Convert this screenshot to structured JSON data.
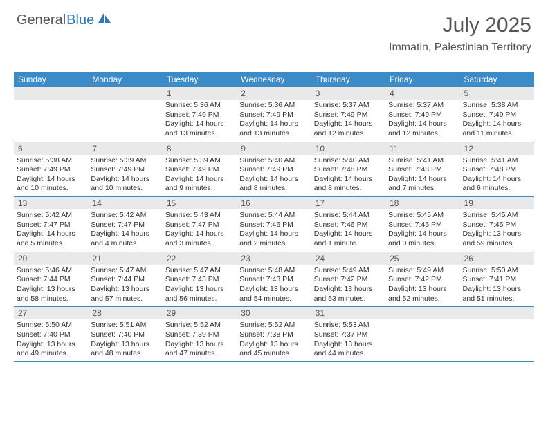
{
  "logo": {
    "text_general": "General",
    "text_blue": "Blue",
    "accent_color": "#2c77b8"
  },
  "header": {
    "month_title": "July 2025",
    "location": "Immatin, Palestinian Territory"
  },
  "colors": {
    "header_bg": "#3b8bc8",
    "day_num_bg": "#e9e9e9",
    "text_main": "#333333",
    "text_muted": "#555555",
    "row_border": "#3b8bc8"
  },
  "day_names": [
    "Sunday",
    "Monday",
    "Tuesday",
    "Wednesday",
    "Thursday",
    "Friday",
    "Saturday"
  ],
  "weeks": [
    [
      null,
      null,
      {
        "num": "1",
        "sunrise": "Sunrise: 5:36 AM",
        "sunset": "Sunset: 7:49 PM",
        "daylight": "Daylight: 14 hours and 13 minutes."
      },
      {
        "num": "2",
        "sunrise": "Sunrise: 5:36 AM",
        "sunset": "Sunset: 7:49 PM",
        "daylight": "Daylight: 14 hours and 13 minutes."
      },
      {
        "num": "3",
        "sunrise": "Sunrise: 5:37 AM",
        "sunset": "Sunset: 7:49 PM",
        "daylight": "Daylight: 14 hours and 12 minutes."
      },
      {
        "num": "4",
        "sunrise": "Sunrise: 5:37 AM",
        "sunset": "Sunset: 7:49 PM",
        "daylight": "Daylight: 14 hours and 12 minutes."
      },
      {
        "num": "5",
        "sunrise": "Sunrise: 5:38 AM",
        "sunset": "Sunset: 7:49 PM",
        "daylight": "Daylight: 14 hours and 11 minutes."
      }
    ],
    [
      {
        "num": "6",
        "sunrise": "Sunrise: 5:38 AM",
        "sunset": "Sunset: 7:49 PM",
        "daylight": "Daylight: 14 hours and 10 minutes."
      },
      {
        "num": "7",
        "sunrise": "Sunrise: 5:39 AM",
        "sunset": "Sunset: 7:49 PM",
        "daylight": "Daylight: 14 hours and 10 minutes."
      },
      {
        "num": "8",
        "sunrise": "Sunrise: 5:39 AM",
        "sunset": "Sunset: 7:49 PM",
        "daylight": "Daylight: 14 hours and 9 minutes."
      },
      {
        "num": "9",
        "sunrise": "Sunrise: 5:40 AM",
        "sunset": "Sunset: 7:49 PM",
        "daylight": "Daylight: 14 hours and 8 minutes."
      },
      {
        "num": "10",
        "sunrise": "Sunrise: 5:40 AM",
        "sunset": "Sunset: 7:48 PM",
        "daylight": "Daylight: 14 hours and 8 minutes."
      },
      {
        "num": "11",
        "sunrise": "Sunrise: 5:41 AM",
        "sunset": "Sunset: 7:48 PM",
        "daylight": "Daylight: 14 hours and 7 minutes."
      },
      {
        "num": "12",
        "sunrise": "Sunrise: 5:41 AM",
        "sunset": "Sunset: 7:48 PM",
        "daylight": "Daylight: 14 hours and 6 minutes."
      }
    ],
    [
      {
        "num": "13",
        "sunrise": "Sunrise: 5:42 AM",
        "sunset": "Sunset: 7:47 PM",
        "daylight": "Daylight: 14 hours and 5 minutes."
      },
      {
        "num": "14",
        "sunrise": "Sunrise: 5:42 AM",
        "sunset": "Sunset: 7:47 PM",
        "daylight": "Daylight: 14 hours and 4 minutes."
      },
      {
        "num": "15",
        "sunrise": "Sunrise: 5:43 AM",
        "sunset": "Sunset: 7:47 PM",
        "daylight": "Daylight: 14 hours and 3 minutes."
      },
      {
        "num": "16",
        "sunrise": "Sunrise: 5:44 AM",
        "sunset": "Sunset: 7:46 PM",
        "daylight": "Daylight: 14 hours and 2 minutes."
      },
      {
        "num": "17",
        "sunrise": "Sunrise: 5:44 AM",
        "sunset": "Sunset: 7:46 PM",
        "daylight": "Daylight: 14 hours and 1 minute."
      },
      {
        "num": "18",
        "sunrise": "Sunrise: 5:45 AM",
        "sunset": "Sunset: 7:45 PM",
        "daylight": "Daylight: 14 hours and 0 minutes."
      },
      {
        "num": "19",
        "sunrise": "Sunrise: 5:45 AM",
        "sunset": "Sunset: 7:45 PM",
        "daylight": "Daylight: 13 hours and 59 minutes."
      }
    ],
    [
      {
        "num": "20",
        "sunrise": "Sunrise: 5:46 AM",
        "sunset": "Sunset: 7:44 PM",
        "daylight": "Daylight: 13 hours and 58 minutes."
      },
      {
        "num": "21",
        "sunrise": "Sunrise: 5:47 AM",
        "sunset": "Sunset: 7:44 PM",
        "daylight": "Daylight: 13 hours and 57 minutes."
      },
      {
        "num": "22",
        "sunrise": "Sunrise: 5:47 AM",
        "sunset": "Sunset: 7:43 PM",
        "daylight": "Daylight: 13 hours and 56 minutes."
      },
      {
        "num": "23",
        "sunrise": "Sunrise: 5:48 AM",
        "sunset": "Sunset: 7:43 PM",
        "daylight": "Daylight: 13 hours and 54 minutes."
      },
      {
        "num": "24",
        "sunrise": "Sunrise: 5:49 AM",
        "sunset": "Sunset: 7:42 PM",
        "daylight": "Daylight: 13 hours and 53 minutes."
      },
      {
        "num": "25",
        "sunrise": "Sunrise: 5:49 AM",
        "sunset": "Sunset: 7:42 PM",
        "daylight": "Daylight: 13 hours and 52 minutes."
      },
      {
        "num": "26",
        "sunrise": "Sunrise: 5:50 AM",
        "sunset": "Sunset: 7:41 PM",
        "daylight": "Daylight: 13 hours and 51 minutes."
      }
    ],
    [
      {
        "num": "27",
        "sunrise": "Sunrise: 5:50 AM",
        "sunset": "Sunset: 7:40 PM",
        "daylight": "Daylight: 13 hours and 49 minutes."
      },
      {
        "num": "28",
        "sunrise": "Sunrise: 5:51 AM",
        "sunset": "Sunset: 7:40 PM",
        "daylight": "Daylight: 13 hours and 48 minutes."
      },
      {
        "num": "29",
        "sunrise": "Sunrise: 5:52 AM",
        "sunset": "Sunset: 7:39 PM",
        "daylight": "Daylight: 13 hours and 47 minutes."
      },
      {
        "num": "30",
        "sunrise": "Sunrise: 5:52 AM",
        "sunset": "Sunset: 7:38 PM",
        "daylight": "Daylight: 13 hours and 45 minutes."
      },
      {
        "num": "31",
        "sunrise": "Sunrise: 5:53 AM",
        "sunset": "Sunset: 7:37 PM",
        "daylight": "Daylight: 13 hours and 44 minutes."
      },
      null,
      null
    ]
  ]
}
